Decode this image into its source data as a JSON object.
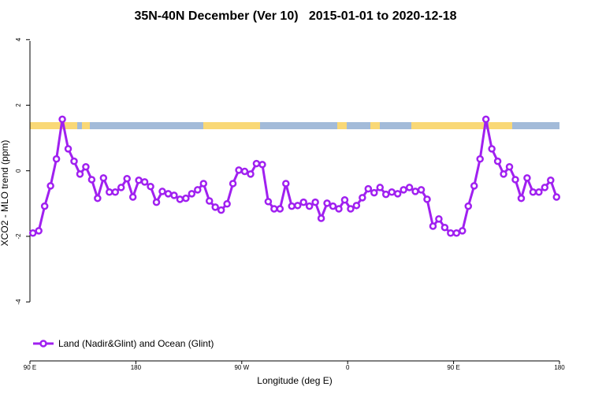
{
  "chart_data": {
    "type": "line",
    "title": "35N-40N December (Ver 10)   2015-01-01 to 2020-12-18",
    "x_label": "Longitude (deg E)",
    "y_label": "XCO2 - MLO trend (ppm)",
    "x": [
      92.5,
      97.5,
      102.5,
      107.5,
      112.5,
      117.5,
      122.5,
      127.5,
      132.5,
      137.5,
      142.5,
      147.5,
      152.5,
      157.5,
      162.5,
      167.5,
      172.5,
      177.5,
      182.5,
      187.5,
      192.5,
      197.5,
      202.5,
      207.5,
      212.5,
      217.5,
      222.5,
      227.5,
      232.5,
      237.5,
      242.5,
      247.5,
      252.5,
      257.5,
      262.5,
      267.5,
      272.5,
      277.5,
      282.5,
      287.5,
      292.5,
      297.5,
      302.5,
      307.5,
      312.5,
      317.5,
      322.5,
      327.5,
      332.5,
      337.5,
      342.5,
      347.5,
      352.5,
      357.5,
      362.5,
      367.5,
      372.5,
      377.5,
      382.5,
      387.5,
      392.5,
      397.5,
      402.5,
      407.5,
      412.5,
      417.5,
      422.5,
      427.5,
      432.5,
      437.5,
      442.5,
      447.5,
      452.5,
      457.5,
      462.5,
      467.5,
      472.5,
      477.5,
      482.5,
      487.5,
      492.5,
      497.5,
      502.5,
      507.5,
      512.5,
      517.5,
      522.5,
      527.5,
      532.5,
      537.5
    ],
    "series": [
      {
        "name": "Land (Nadir&Glint) and Ocean (Glint)",
        "color": "#a020f0",
        "values": [
          -1.9,
          -1.83,
          -1.08,
          -0.46,
          0.36,
          1.57,
          0.67,
          0.29,
          -0.1,
          0.12,
          -0.27,
          -0.84,
          -0.22,
          -0.65,
          -0.65,
          -0.51,
          -0.24,
          -0.8,
          -0.29,
          -0.34,
          -0.48,
          -0.96,
          -0.63,
          -0.7,
          -0.75,
          -0.87,
          -0.84,
          -0.7,
          -0.58,
          -0.39,
          -0.92,
          -1.11,
          -1.2,
          -1.01,
          -0.39,
          0.02,
          -0.02,
          -0.1,
          0.22,
          0.19,
          -0.94,
          -1.16,
          -1.16,
          -0.39,
          -1.08,
          -1.06,
          -0.96,
          -1.08,
          -0.96,
          -1.45,
          -0.99,
          -1.08,
          -1.16,
          -0.89,
          -1.16,
          -1.06,
          -0.82,
          -0.55,
          -0.67,
          -0.51,
          -0.72,
          -0.65,
          -0.7,
          -0.58,
          -0.51,
          -0.63,
          -0.58,
          -0.87,
          -1.69,
          -1.47,
          -1.73,
          -1.9,
          -1.9,
          -1.83,
          -1.08,
          -0.46,
          0.36,
          1.57,
          0.67,
          0.29,
          -0.1,
          0.12,
          -0.27,
          -0.84,
          -0.22,
          -0.65,
          -0.65,
          -0.51,
          -0.29,
          -0.8
        ]
      }
    ],
    "xlim": [
      90,
      540
    ],
    "xticks": [
      {
        "value": 90,
        "label": "90 E"
      },
      180,
      {
        "value": 270,
        "label": "90 W"
      },
      {
        "value": 360,
        "label": "0"
      },
      {
        "value": 450,
        "label": "90 E"
      },
      {
        "value": 540,
        "label": "180"
      }
    ],
    "ylim": [
      -5.8,
      4.2
    ],
    "yticks": [
      -4,
      -2,
      0,
      2,
      4
    ],
    "legend": "bottom-left"
  }
}
